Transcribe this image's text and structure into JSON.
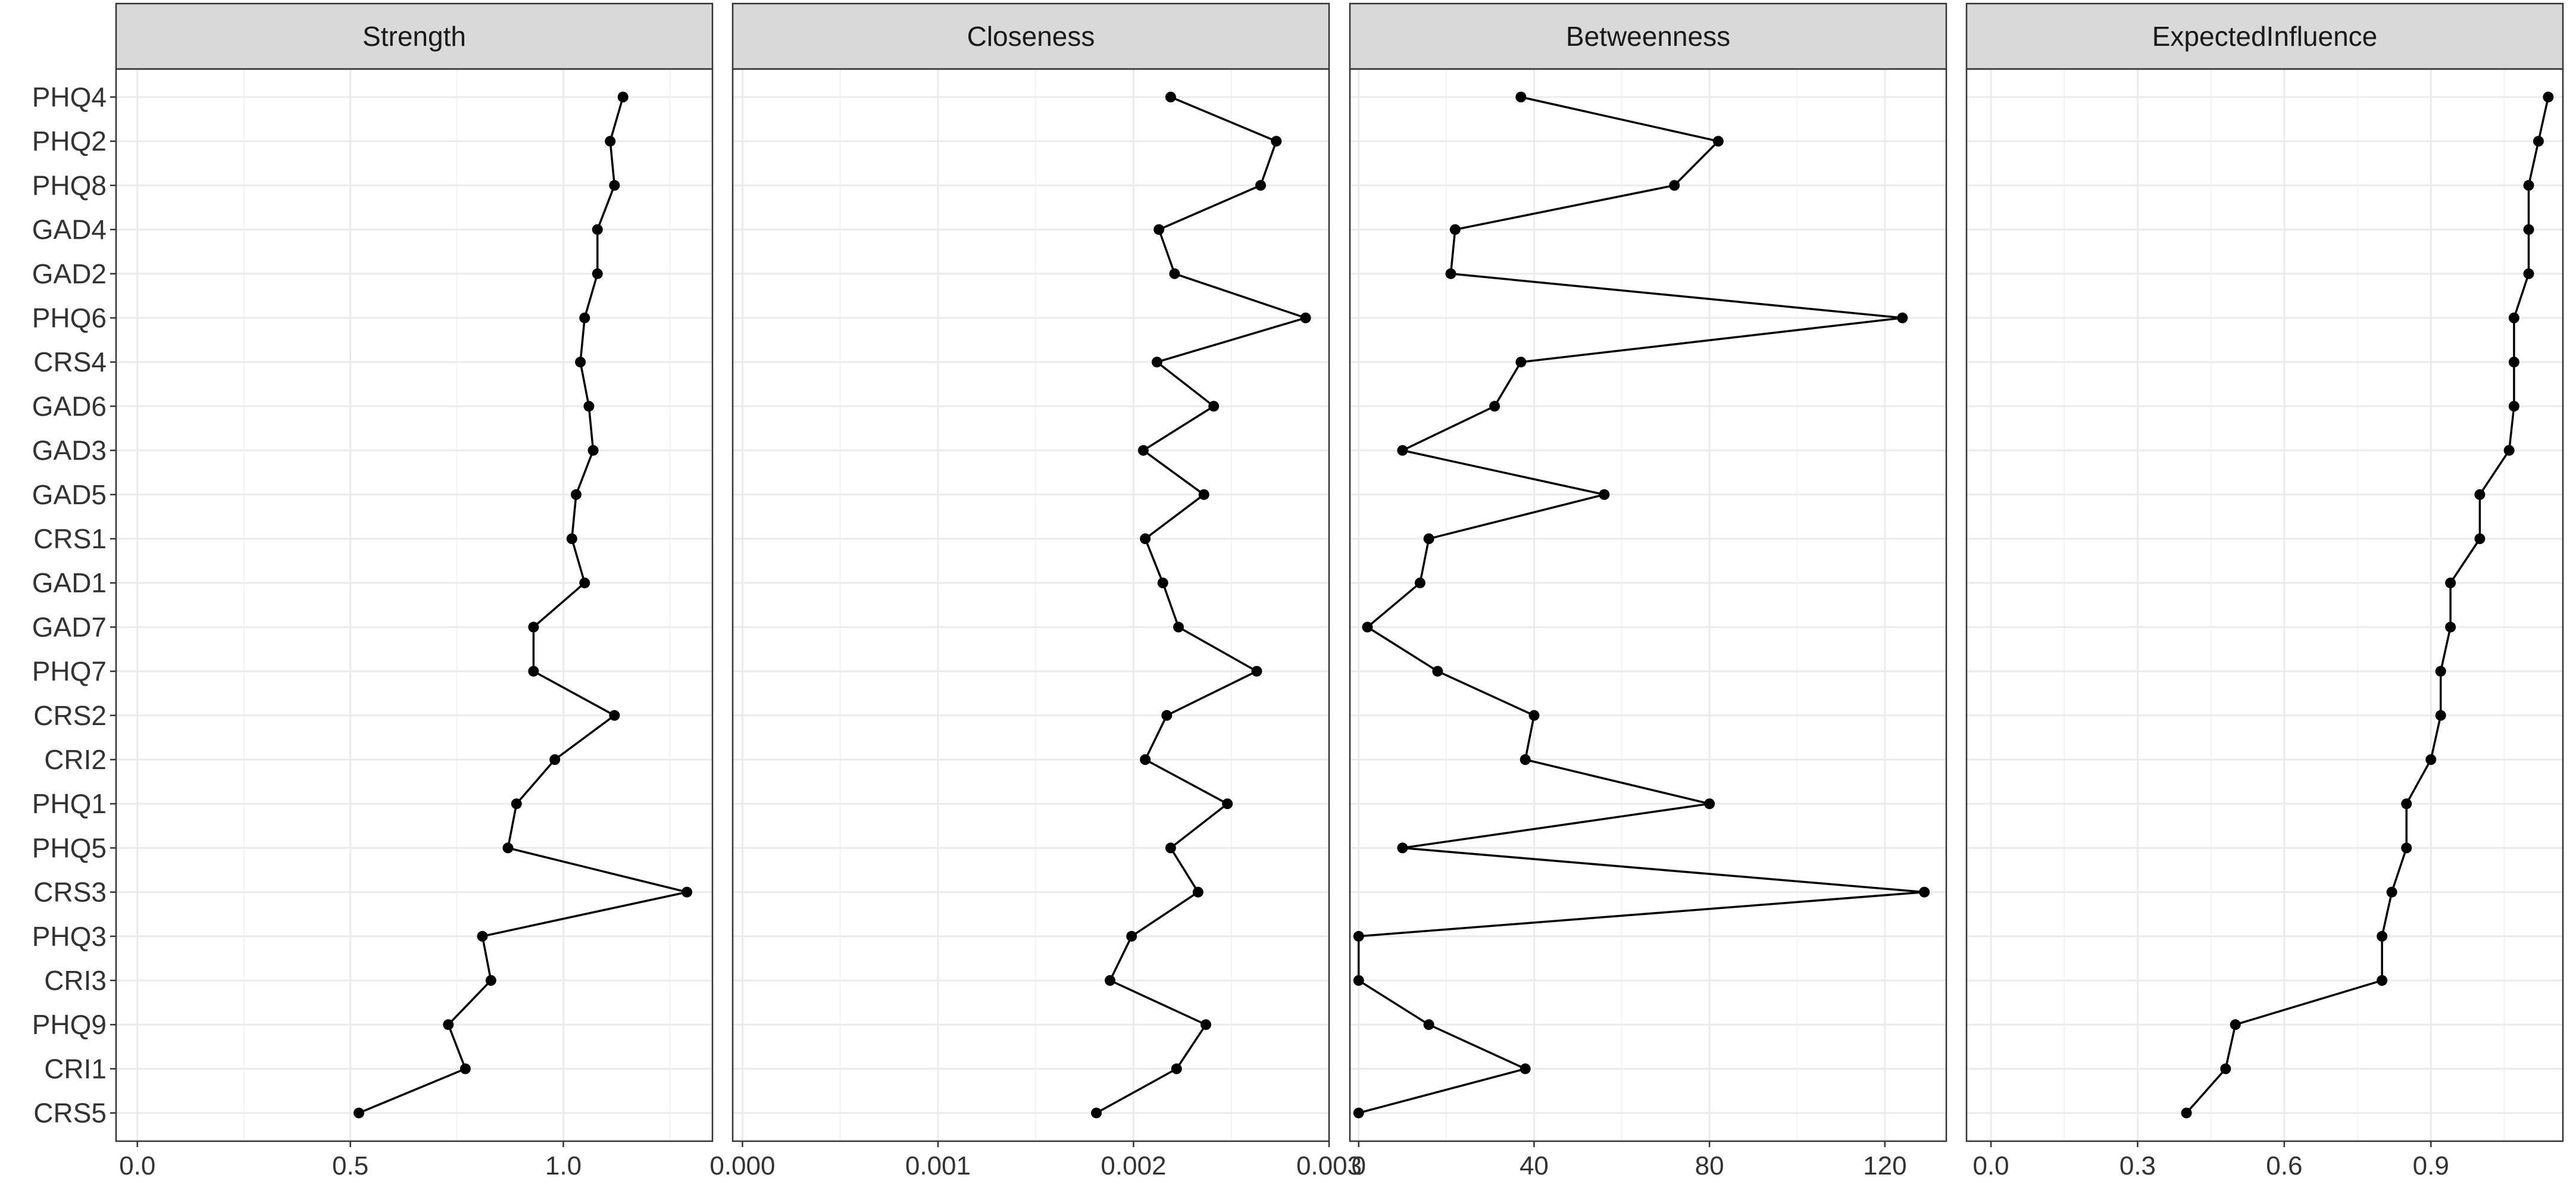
{
  "chart_data": {
    "type": "line",
    "facet_orientation": "horizontal",
    "categories": [
      "PHQ4",
      "PHQ2",
      "PHQ8",
      "GAD4",
      "GAD2",
      "PHQ6",
      "CRS4",
      "GAD6",
      "GAD3",
      "GAD5",
      "CRS1",
      "GAD1",
      "GAD7",
      "PHQ7",
      "CRS2",
      "CRI2",
      "PHQ1",
      "PHQ5",
      "CRS3",
      "PHQ3",
      "CRI3",
      "PHQ9",
      "CRI1",
      "CRS5"
    ],
    "grid": true,
    "legend": "none",
    "line_color": "#000000",
    "point_color": "#000000",
    "strip_fill": "#d9d9d9",
    "panels": [
      {
        "title": "Strength",
        "xlim": [
          -0.05,
          1.35
        ],
        "xticks": [
          0.0,
          0.5,
          1.0
        ],
        "xtick_labels": [
          "0.0",
          "0.5",
          "1.0"
        ],
        "values": [
          1.14,
          1.11,
          1.12,
          1.08,
          1.08,
          1.05,
          1.04,
          1.06,
          1.07,
          1.03,
          1.02,
          1.05,
          0.93,
          0.93,
          1.12,
          0.98,
          0.89,
          0.87,
          1.29,
          0.81,
          0.83,
          0.73,
          0.77,
          0.52
        ]
      },
      {
        "title": "Closeness",
        "xlim": [
          -5e-05,
          0.003
        ],
        "xticks": [
          0.0,
          0.001,
          0.002,
          0.003
        ],
        "xtick_labels": [
          "0.000",
          "0.001",
          "0.002",
          "0.003"
        ],
        "values": [
          0.00219,
          0.00273,
          0.00265,
          0.00213,
          0.00221,
          0.00288,
          0.00212,
          0.00241,
          0.00205,
          0.00236,
          0.00206,
          0.00215,
          0.00223,
          0.00263,
          0.00217,
          0.00206,
          0.00248,
          0.00219,
          0.00233,
          0.00199,
          0.00188,
          0.00237,
          0.00222,
          0.00181
        ]
      },
      {
        "title": "Betweenness",
        "xlim": [
          -2,
          134
        ],
        "xticks": [
          0,
          40,
          80,
          120
        ],
        "xtick_labels": [
          "0",
          "40",
          "80",
          "120"
        ],
        "values": [
          37,
          82,
          72,
          22,
          21,
          124,
          37,
          31,
          10,
          56,
          16,
          14,
          2,
          18,
          40,
          38,
          80,
          10,
          129,
          0,
          0,
          16,
          38,
          0
        ]
      },
      {
        "title": "ExpectedInfluence",
        "xlim": [
          -0.05,
          1.17
        ],
        "xticks": [
          0.0,
          0.3,
          0.6,
          0.9
        ],
        "xtick_labels": [
          "0.0",
          "0.3",
          "0.6",
          "0.9"
        ],
        "values": [
          1.14,
          1.12,
          1.1,
          1.1,
          1.1,
          1.07,
          1.07,
          1.07,
          1.06,
          1.0,
          1.0,
          0.94,
          0.94,
          0.92,
          0.92,
          0.9,
          0.85,
          0.85,
          0.82,
          0.8,
          0.8,
          0.5,
          0.48,
          0.4
        ]
      }
    ]
  }
}
